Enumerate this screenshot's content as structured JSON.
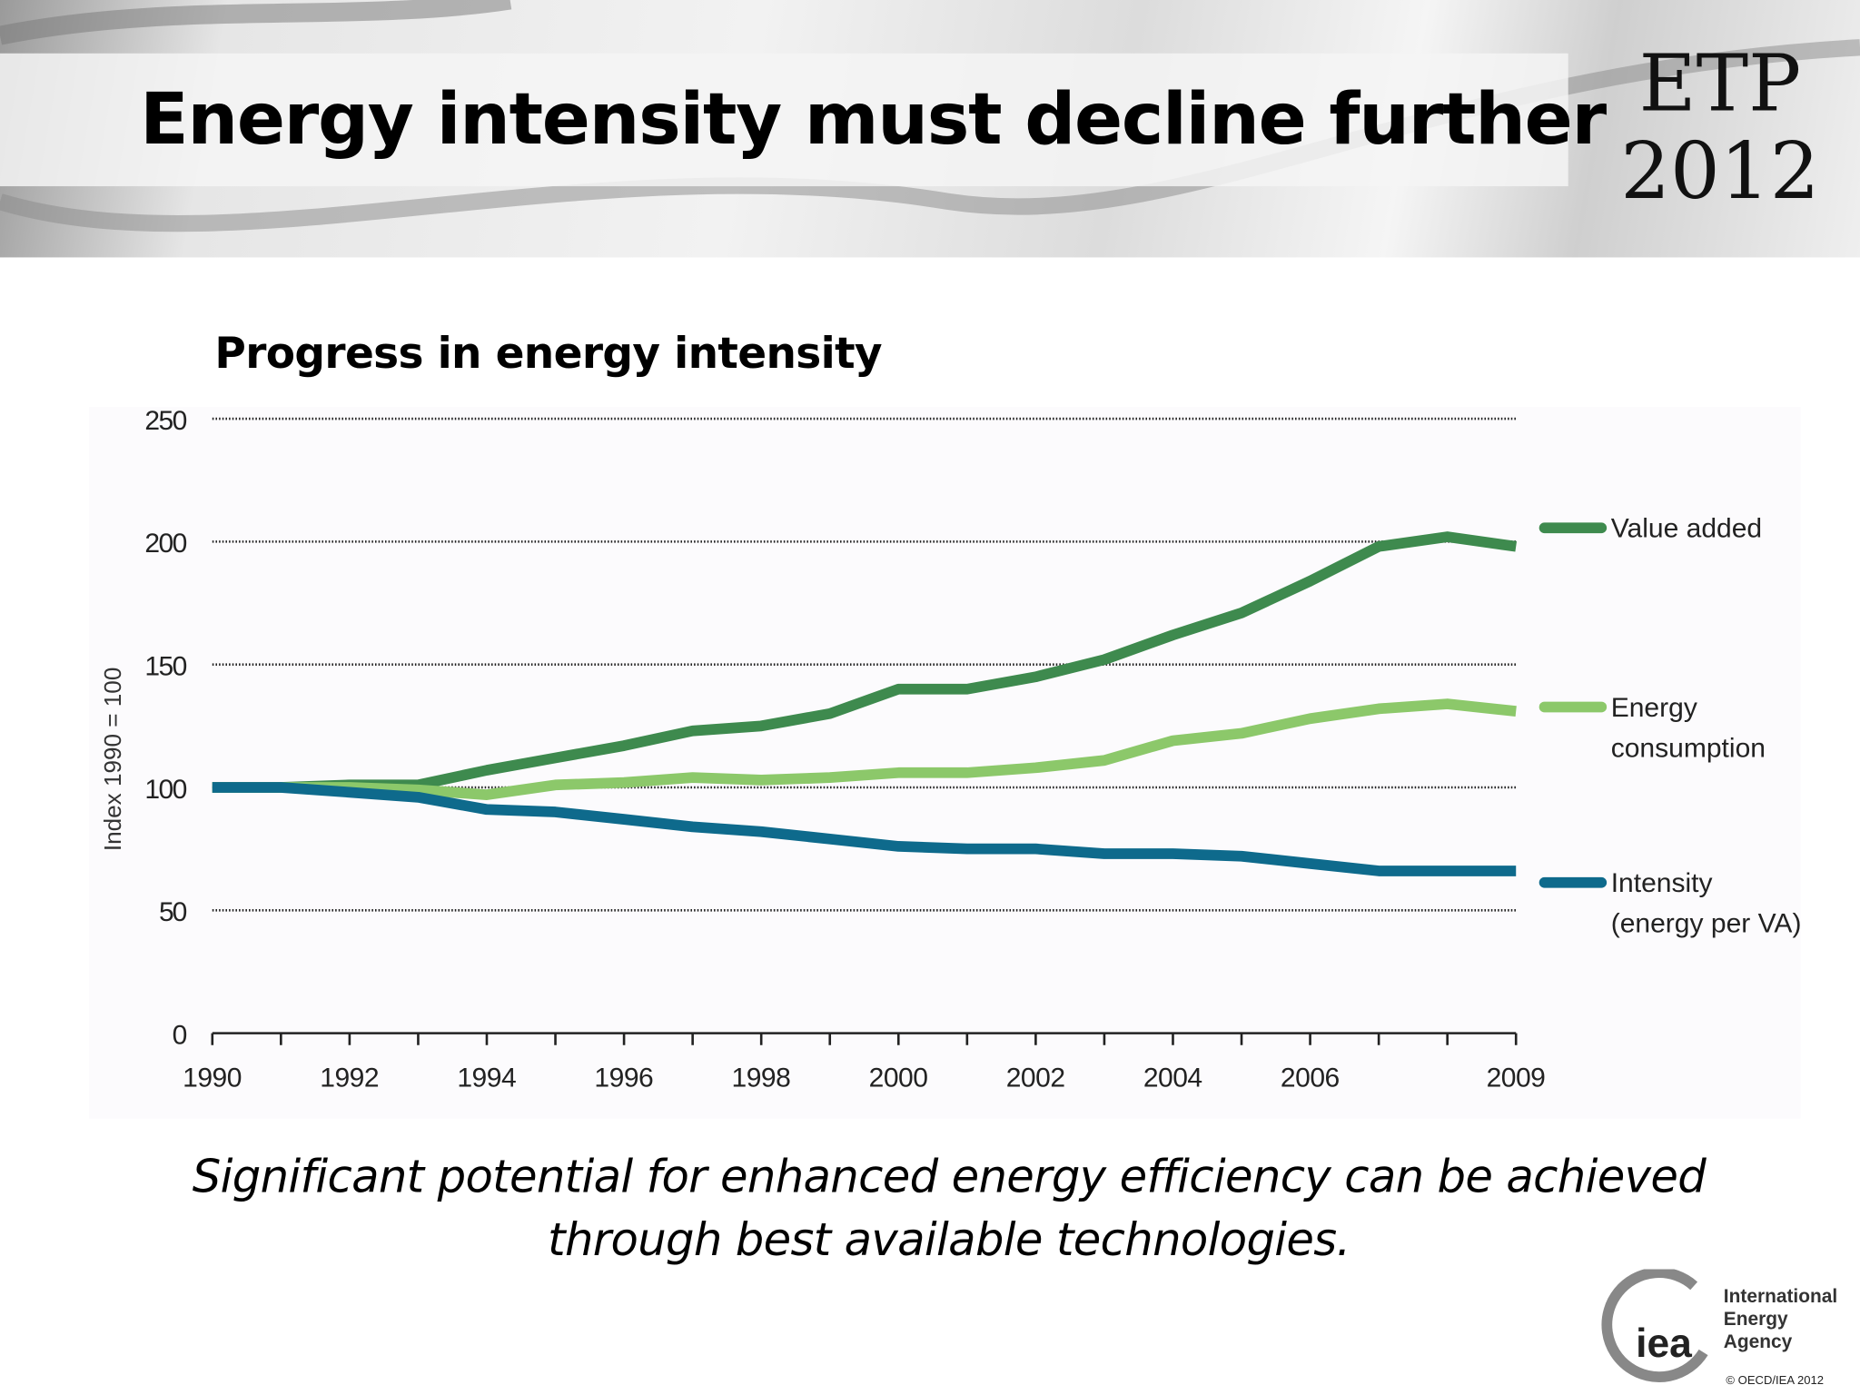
{
  "header": {
    "title": "Energy intensity must decline further",
    "badge_line1": "ETP",
    "badge_line2": "2012"
  },
  "caption": {
    "line1": "Significant potential for enhanced energy efficiency can be achieved",
    "line2": "through best available technologies."
  },
  "footer": {
    "logo_mark": "iea",
    "org_line1": "International",
    "org_line2": "Energy Agency",
    "copyright": "© OECD/IEA 2012"
  },
  "chart_data": {
    "type": "line",
    "title": "Progress in energy intensity",
    "ylabel": "Index 1990 = 100",
    "xlabel": "",
    "ylim": [
      0,
      250
    ],
    "yticks": [
      "0",
      "50",
      "100",
      "150",
      "200",
      "250"
    ],
    "xlim": [
      1990,
      2009
    ],
    "xticklabels": [
      "1990",
      "1992",
      "1994",
      "1996",
      "1998",
      "2000",
      "2002",
      "2004",
      "2006",
      "2009"
    ],
    "grid": "horizontal dotted",
    "legend": "right, end of lines",
    "x": [
      1990,
      1991,
      1992,
      1993,
      1994,
      1995,
      1996,
      1997,
      1998,
      1999,
      2000,
      2001,
      2002,
      2003,
      2004,
      2005,
      2006,
      2007,
      2008,
      2009
    ],
    "series": [
      {
        "name": "Value added",
        "color": "#3e8a4e",
        "values": [
          100,
          100,
          101,
          101,
          107,
          112,
          117,
          123,
          125,
          130,
          140,
          140,
          145,
          152,
          162,
          171,
          184,
          198,
          202,
          198
        ]
      },
      {
        "name": "Energy consumption",
        "label_line1": "Energy",
        "label_line2": "consumption",
        "color": "#8cc86a",
        "values": [
          100,
          100,
          100,
          99,
          97,
          101,
          102,
          104,
          103,
          104,
          106,
          106,
          108,
          111,
          119,
          122,
          128,
          132,
          134,
          131
        ]
      },
      {
        "name": "Intensity (energy per VA)",
        "label_line1": "Intensity",
        "label_line2": "(energy per VA)",
        "color": "#0e6a8c",
        "values": [
          100,
          100,
          98,
          96,
          91,
          90,
          87,
          84,
          82,
          79,
          76,
          75,
          75,
          73,
          73,
          72,
          69,
          66,
          66,
          66
        ]
      }
    ]
  }
}
